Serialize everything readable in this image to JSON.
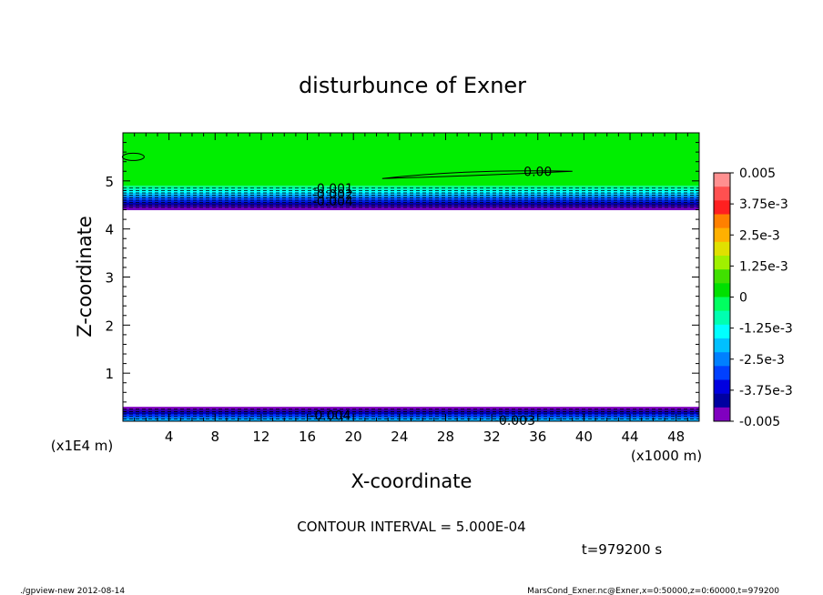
{
  "chart_data": {
    "type": "heatmap",
    "title": "disturbunce of Exner",
    "xlabel": "X-coordinate",
    "ylabel": "Z-coordinate",
    "x_unit_left": "(x1E4 m)",
    "x_unit_right": "(x1000 m)",
    "xlim": [
      0,
      50
    ],
    "ylim": [
      0,
      6
    ],
    "x_ticks": [
      "4",
      "8",
      "12",
      "16",
      "20",
      "24",
      "28",
      "32",
      "36",
      "40",
      "44",
      "48"
    ],
    "x_tick_values": [
      4,
      8,
      12,
      16,
      20,
      24,
      28,
      32,
      36,
      40,
      44,
      48
    ],
    "y_ticks": [
      "1",
      "2",
      "3",
      "4",
      "5"
    ],
    "y_tick_values": [
      1,
      2,
      3,
      4,
      5
    ],
    "colorbar": {
      "labels": [
        "0.005",
        "3.75e-3",
        "2.5e-3",
        "1.25e-3",
        "0",
        "-1.25e-3",
        "-2.5e-3",
        "-3.75e-3",
        "-0.005"
      ],
      "values": [
        0.005,
        0.00375,
        0.0025,
        0.00125,
        0,
        -0.00125,
        -0.0025,
        -0.00375,
        -0.005
      ],
      "colors": [
        "#ff9090",
        "#ff5050",
        "#ff2020",
        "#ff8000",
        "#ffb000",
        "#e0e000",
        "#a0f000",
        "#40e000",
        "#00e000",
        "#00ff60",
        "#00ffb0",
        "#00ffff",
        "#00c0ff",
        "#0080ff",
        "#0040ff",
        "#0000e0",
        "#0000a0",
        "#8000c0"
      ]
    },
    "bands": [
      {
        "name": "upper",
        "z_bottom": 4.4,
        "z_top": 4.9
      },
      {
        "name": "lower",
        "z_bottom": 0.0,
        "z_top": 0.3
      }
    ],
    "background_fill": {
      "z_from": 4.9,
      "z_to": 6.0,
      "color": "#00ee00"
    },
    "contour_labels": [
      {
        "text": "0.00",
        "x": 36,
        "z": 5.2
      },
      {
        "text": "-0.001",
        "x": 18.2,
        "z": 4.85
      },
      {
        "text": "-0.002",
        "x": 18.2,
        "z": 4.72
      },
      {
        "text": "-0.004",
        "x": 18.2,
        "z": 4.58
      },
      {
        "text": "-0.004",
        "x": 18,
        "z": 0.12
      },
      {
        "text": "-0.003",
        "x": 34,
        "z": 0.02
      }
    ],
    "contour_interval": "CONTOUR INTERVAL = 5.000E-04",
    "time": "t=979200 s"
  },
  "footer": {
    "left": "./gpview-new  2012-08-14",
    "right": "MarsCond_Exner.nc@Exner,x=0:50000,z=0:60000,t=979200"
  }
}
